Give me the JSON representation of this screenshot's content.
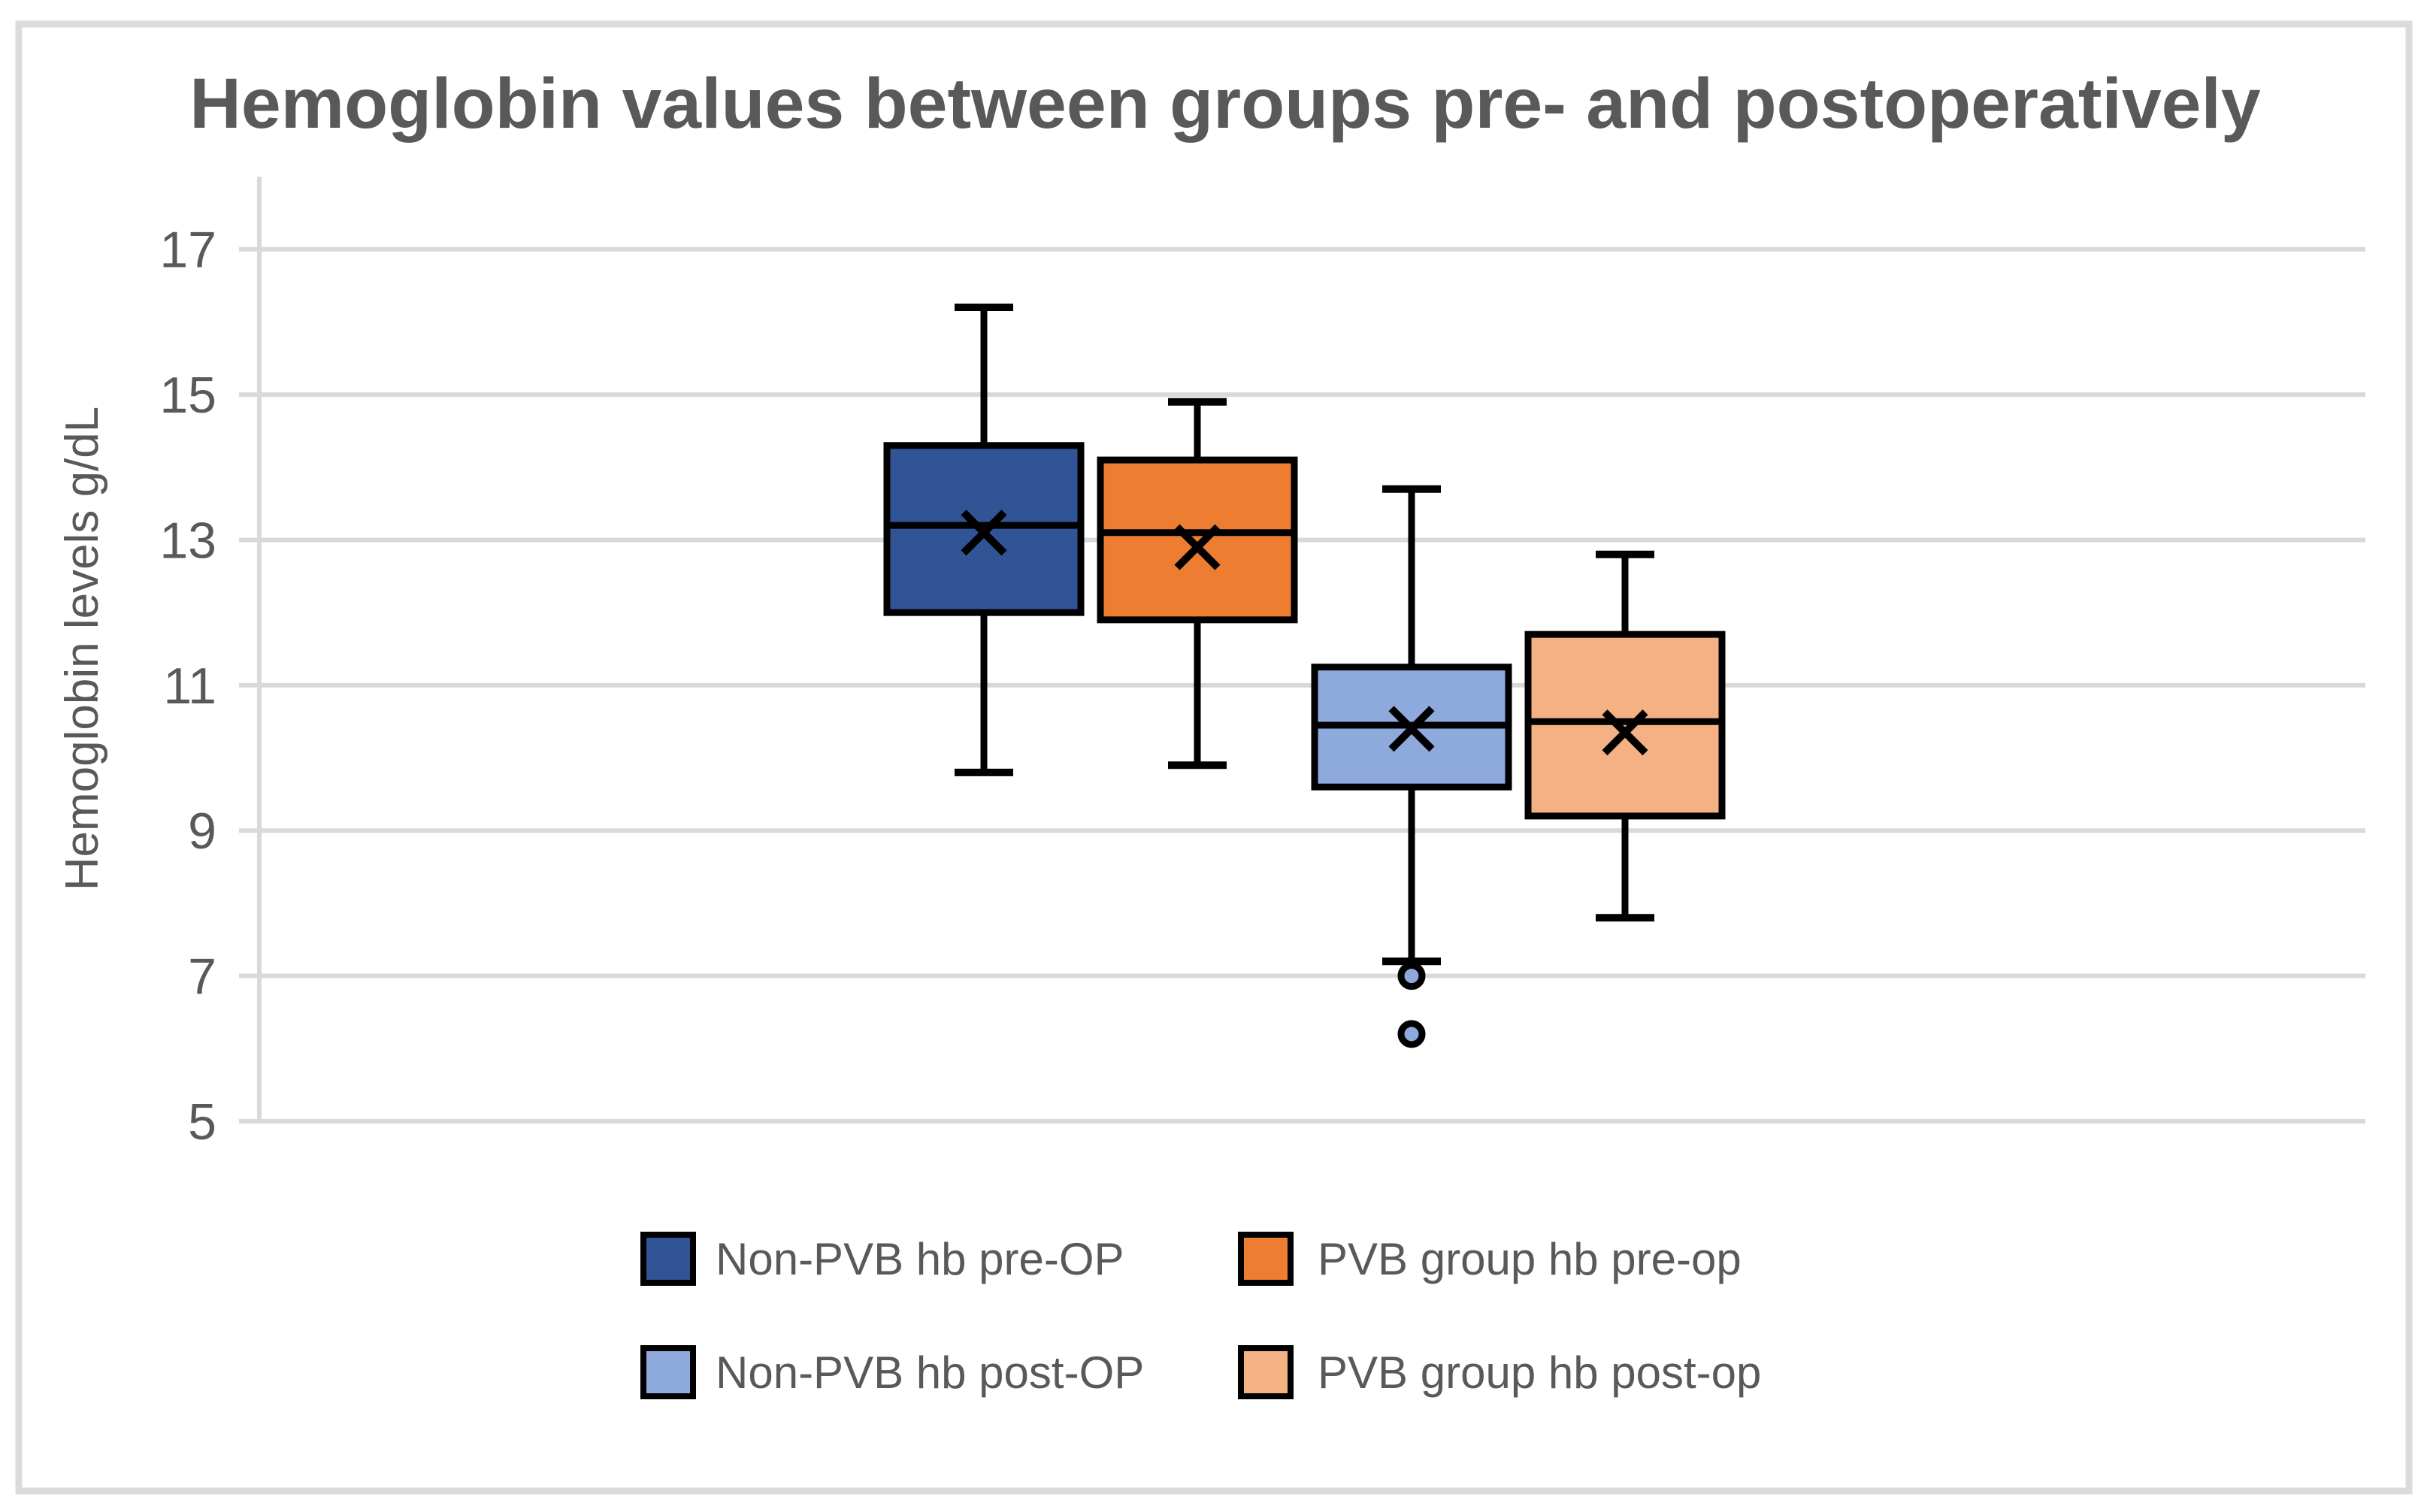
{
  "chart_data": {
    "type": "boxplot",
    "title": "Hemoglobin values between groups pre- and postoperatively",
    "ylabel": "Hemoglobin levels g/dL",
    "xlabel": "",
    "ylim": [
      5,
      18
    ],
    "yticks": [
      17,
      15,
      13,
      11,
      9,
      7,
      5
    ],
    "grid": true,
    "legend_position": "bottom",
    "series": [
      {
        "name": "Non-PVB hb pre-OP",
        "color": "#305496",
        "whisker_low": 9.8,
        "q1": 12.0,
        "median": 13.2,
        "mean": 13.1,
        "q3": 14.3,
        "whisker_high": 16.2,
        "outliers": []
      },
      {
        "name": "PVB group hb pre-op",
        "color": "#ED7D31",
        "whisker_low": 9.9,
        "q1": 11.9,
        "median": 13.1,
        "mean": 12.9,
        "q3": 14.1,
        "whisker_high": 14.9,
        "outliers": []
      },
      {
        "name": "Non-PVB hb post-OP",
        "color": "#8EA9DB",
        "whisker_low": 7.2,
        "q1": 9.6,
        "median": 10.45,
        "mean": 10.4,
        "q3": 11.25,
        "whisker_high": 13.7,
        "outliers": [
          7.0,
          6.2
        ]
      },
      {
        "name": "PVB group hb post-op",
        "color": "#F4B183",
        "whisker_low": 7.8,
        "q1": 9.2,
        "median": 10.5,
        "mean": 10.35,
        "q3": 11.7,
        "whisker_high": 12.8,
        "outliers": []
      }
    ]
  },
  "style_colors": {
    "gridline": "#D9D9D9",
    "axis_line": "#D9D9D9",
    "figure_border": "#DBDBDB",
    "text": "#595959",
    "box_outline": "#000000"
  }
}
